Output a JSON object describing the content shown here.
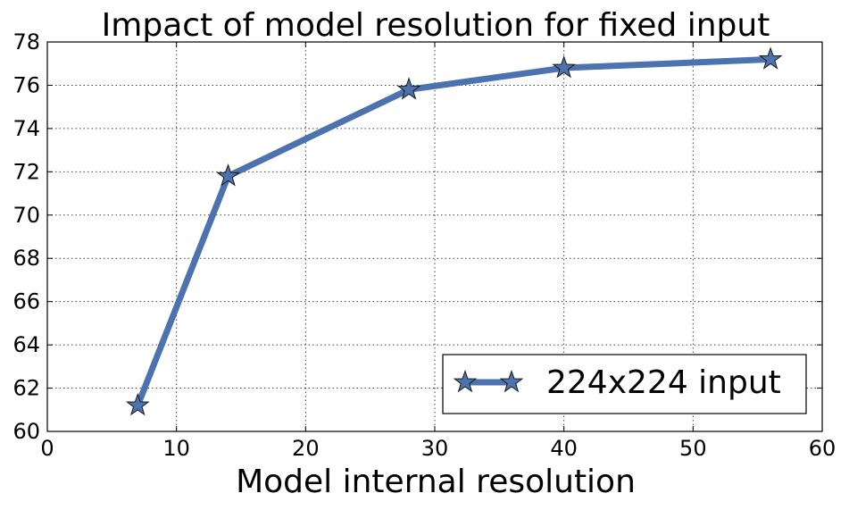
{
  "chart_data": {
    "type": "line",
    "title": "Impact of model resolution for fixed input",
    "xlabel": "Model internal resolution",
    "ylabel": "",
    "xlim": [
      0,
      60
    ],
    "ylim": [
      60,
      78
    ],
    "xticks": [
      0,
      10,
      20,
      30,
      40,
      50,
      60
    ],
    "yticks": [
      60,
      62,
      64,
      66,
      68,
      70,
      72,
      74,
      76,
      78
    ],
    "grid": true,
    "legend_position": "lower-right",
    "series": [
      {
        "name": "224x224 input",
        "x": [
          7,
          14,
          28,
          40,
          56
        ],
        "y": [
          61.2,
          71.8,
          75.8,
          76.8,
          77.2
        ],
        "color": "#4c72b0",
        "marker": "star-icon"
      }
    ]
  }
}
